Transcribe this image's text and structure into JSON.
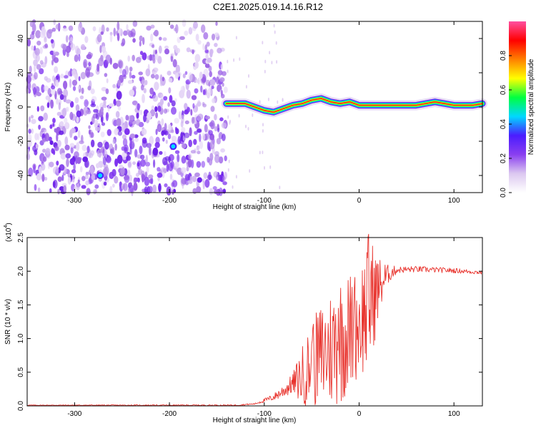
{
  "title": "C2E1.2025.019.14.16.R12",
  "chart_data": [
    {
      "type": "heatmap",
      "title": "C2E1.2025.019.14.16.R12",
      "xlabel": "Height of straight line (km)",
      "ylabel": "Frequency (Hz)",
      "xlim": [
        -350,
        130
      ],
      "ylim": [
        -50,
        50
      ],
      "xticks": [
        -300,
        -200,
        -100,
        0,
        100
      ],
      "xtick_labels": [
        "-300",
        "-200",
        "-100",
        "0",
        "100"
      ],
      "yticks": [
        -40,
        -20,
        0,
        20,
        40
      ],
      "ytick_labels": [
        "-40",
        "-20",
        "0",
        "20",
        "40"
      ],
      "colorbar": {
        "label": "Normalized spectral amplitude",
        "range": [
          0,
          1
        ],
        "ticks": [
          0.0,
          0.2,
          0.4,
          0.6,
          0.8
        ],
        "tick_labels": [
          "0.0",
          "0.2",
          "0.4",
          "0.6",
          "0.8"
        ],
        "colors": [
          "#ffffff",
          "#dcc8f0",
          "#8a3ff0",
          "#4b1cff",
          "#00d8ff",
          "#00ff40",
          "#ffff00",
          "#ff8000",
          "#ff0000",
          "#ff4fa0"
        ]
      },
      "signal_trace": {
        "x": [
          -140,
          -120,
          -100,
          -90,
          -80,
          -70,
          -60,
          -50,
          -40,
          -30,
          -20,
          -10,
          0,
          20,
          40,
          60,
          80,
          90,
          100,
          120,
          130
        ],
        "y": [
          2,
          2,
          -2,
          -3,
          -1,
          1,
          2,
          4,
          5,
          3,
          2,
          3,
          1,
          1,
          1,
          1,
          3,
          2,
          1,
          1,
          2
        ]
      },
      "noise_region_x": [
        -350,
        -140
      ],
      "bright_spots": [
        {
          "x": -273,
          "y": -40
        },
        {
          "x": -196,
          "y": -23
        }
      ]
    },
    {
      "type": "line",
      "xlabel": "Height of straight line (km)",
      "ylabel": "SNR (10 * v/v)",
      "y_scale_label": "(x10",
      "y_scale_exponent": "4",
      "y_scale_suffix": ")",
      "xlim": [
        -350,
        130
      ],
      "ylim": [
        0,
        2.5
      ],
      "xticks": [
        -300,
        -200,
        -100,
        0,
        100
      ],
      "xtick_labels": [
        "-300",
        "-200",
        "-100",
        "0",
        "100"
      ],
      "yticks": [
        0,
        0.5,
        1.0,
        1.5,
        2.0,
        2.5
      ],
      "ytick_labels": [
        "0.0",
        "0.5",
        "1.0",
        "1.5",
        "2.0",
        "2.5"
      ],
      "color": "#e8322c",
      "envelope": {
        "x": [
          -350,
          -130,
          -110,
          -100,
          -90,
          -80,
          -70,
          -60,
          -50,
          -40,
          -30,
          -20,
          -10,
          0,
          10,
          20,
          30,
          40,
          60,
          80,
          100,
          130
        ],
        "y": [
          0.01,
          0.01,
          0.03,
          0.08,
          0.13,
          0.22,
          0.33,
          0.45,
          0.62,
          0.75,
          0.85,
          1.0,
          1.1,
          1.25,
          1.5,
          1.75,
          1.95,
          2.02,
          2.03,
          2.02,
          2.01,
          1.98
        ]
      },
      "noise_amplitude": {
        "x": [
          -350,
          -110,
          -90,
          -70,
          -60,
          -40,
          -20,
          0,
          10,
          20,
          30,
          40,
          130
        ],
        "y": [
          0.005,
          0.01,
          0.05,
          0.15,
          0.45,
          0.8,
          1.0,
          0.8,
          1.1,
          0.5,
          0.15,
          0.05,
          0.03
        ]
      },
      "peaks": [
        {
          "x": -49,
          "y": 1.15
        },
        {
          "x": -22,
          "y": 1.45
        },
        {
          "x": -5,
          "y": 1.75
        },
        {
          "x": 10,
          "y": 2.55
        },
        {
          "x": 13,
          "y": 2.15
        }
      ]
    }
  ]
}
